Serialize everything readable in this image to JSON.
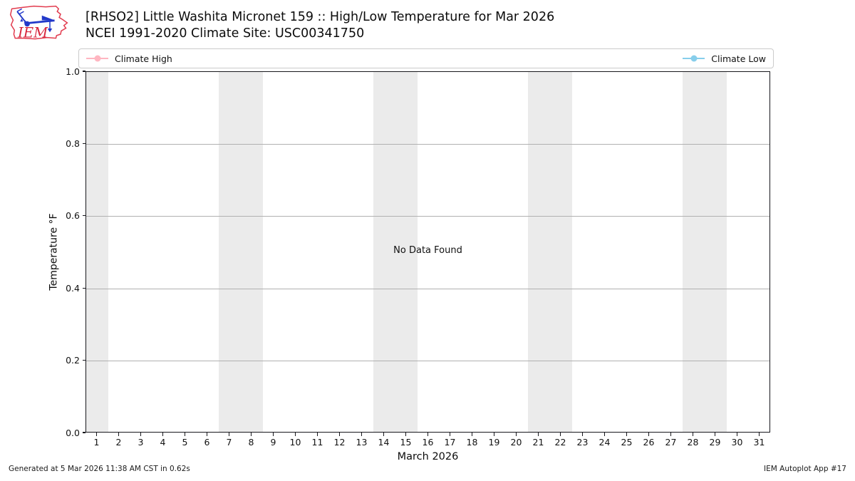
{
  "header": {
    "title_line1": "[RHSO2] Little Washita Micronet 159 :: High/Low Temperature for Mar 2026",
    "title_line2": "NCEI 1991-2020 Climate Site: USC00341750",
    "logo_text": "IEM"
  },
  "legend": {
    "entries": [
      {
        "label": "Climate High",
        "color": "#ffb6c1"
      },
      {
        "label": "Climate Low",
        "color": "#87ceeb"
      }
    ]
  },
  "chart_data": {
    "type": "line",
    "title": "[RHSO2] Little Washita Micronet 159 :: High/Low Temperature for Mar 2026",
    "subtitle": "NCEI 1991-2020 Climate Site: USC00341750",
    "xlabel": "March 2026",
    "ylabel": "Temperature °F",
    "no_data_message": "No Data Found",
    "xlim": [
      0.5,
      31.5
    ],
    "ylim": [
      0.0,
      1.0
    ],
    "x_ticks": [
      1,
      2,
      3,
      4,
      5,
      6,
      7,
      8,
      9,
      10,
      11,
      12,
      13,
      14,
      15,
      16,
      17,
      18,
      19,
      20,
      21,
      22,
      23,
      24,
      25,
      26,
      27,
      28,
      29,
      30,
      31
    ],
    "y_ticks": [
      "0.0",
      "0.2",
      "0.4",
      "0.6",
      "0.8",
      "1.0"
    ],
    "grid": true,
    "gridline_color": "#b0b0b0",
    "band_color": "#ebebeb",
    "weekend_bands": [
      [
        0.5,
        1.5
      ],
      [
        6.5,
        8.5
      ],
      [
        13.5,
        15.5
      ],
      [
        20.5,
        22.5
      ],
      [
        27.5,
        29.5
      ]
    ],
    "legend_position": "top-expanded",
    "series": [
      {
        "name": "Climate High",
        "color": "#ffb6c1",
        "x": [],
        "values": []
      },
      {
        "name": "Climate Low",
        "color": "#87ceeb",
        "x": [],
        "values": []
      }
    ]
  },
  "footer": {
    "left": "Generated at 5 Mar 2026 11:38 AM CST in 0.62s",
    "right": "IEM Autoplot App #17"
  }
}
